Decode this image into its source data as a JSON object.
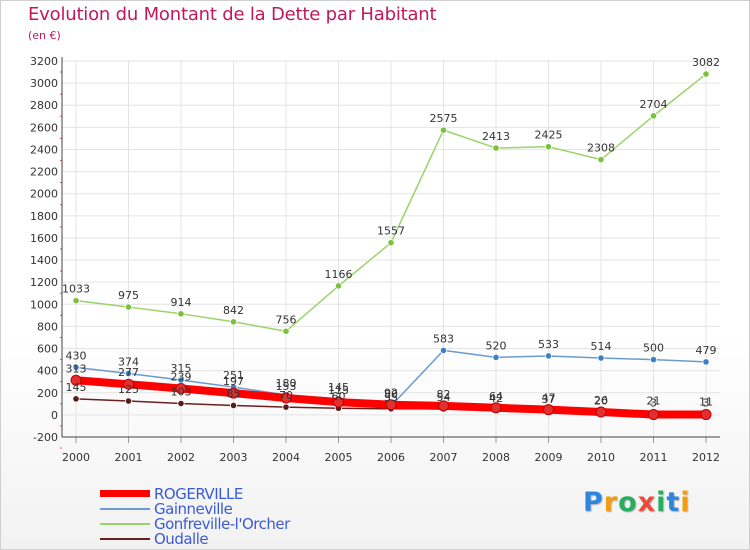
{
  "title": "Evolution du Montant de la Dette par Habitant",
  "subtitle": "(en €)",
  "logo": {
    "letters": [
      {
        "ch": "P",
        "color": "#2e86de"
      },
      {
        "ch": "r",
        "color": "#f39c12"
      },
      {
        "ch": "o",
        "color": "#27ae60"
      },
      {
        "ch": "x",
        "color": "#e74c3c"
      },
      {
        "ch": "i",
        "color": "#27ae60"
      },
      {
        "ch": "t",
        "color": "#2e86de"
      },
      {
        "ch": "i",
        "color": "#f39c12"
      }
    ]
  },
  "chart_data": {
    "type": "line",
    "x": [
      "2000",
      "2001",
      "2002",
      "2003",
      "2004",
      "2005",
      "2006",
      "2007",
      "2008",
      "2009",
      "2010",
      "2011",
      "2012"
    ],
    "ylim": [
      -200,
      3200
    ],
    "yticks": [
      -200,
      0,
      200,
      400,
      600,
      800,
      1000,
      1200,
      1400,
      1600,
      1800,
      2000,
      2200,
      2400,
      2600,
      2800,
      3000,
      3200
    ],
    "grid": true,
    "series": [
      {
        "name": "ROGERVILLE",
        "color": "#ff0000",
        "width": 8,
        "marker_fill": "#e03030",
        "values": [
          313,
          277,
          239,
          197,
          153,
          115,
          92,
          82,
          64,
          47,
          26,
          3,
          3
        ],
        "labels": [
          "313",
          "277",
          "239",
          "197",
          "153",
          "115",
          "92",
          "82",
          "64",
          "47",
          "26",
          "3",
          "3"
        ]
      },
      {
        "name": "Gainneville",
        "color": "#6a9bd0",
        "width": 1.5,
        "marker_fill": "#3b82c4",
        "values": [
          430,
          374,
          315,
          251,
          180,
          145,
          80,
          583,
          520,
          533,
          514,
          500,
          479
        ],
        "labels": [
          "430",
          "374",
          "315",
          "251",
          "180",
          "145",
          "80",
          "583",
          "520",
          "533",
          "514",
          "500",
          "479"
        ]
      },
      {
        "name": "Gonfreville-l'Orcher",
        "color": "#9ad36a",
        "width": 1.5,
        "marker_fill": "#7cc13c",
        "values": [
          1033,
          975,
          914,
          842,
          756,
          1166,
          1557,
          2575,
          2413,
          2425,
          2308,
          2704,
          3082
        ],
        "labels": [
          "1033",
          "975",
          "914",
          "842",
          "756",
          "1166",
          "1557",
          "2575",
          "2413",
          "2425",
          "2308",
          "2704",
          "3082"
        ]
      },
      {
        "name": "Oudalle",
        "color": "#6b1f1f",
        "width": 1.5,
        "marker_fill": "#5a1a1a",
        "values": [
          145,
          125,
          103,
          85,
          70,
          60,
          55,
          54,
          42,
          37,
          20,
          21,
          11
        ],
        "labels": [
          "145",
          "125",
          "103",
          "85",
          "70",
          "60",
          "55",
          "54",
          "42",
          "37",
          "20",
          "21",
          "11"
        ]
      }
    ]
  },
  "legend": [
    {
      "label": "ROGERVILLE",
      "color": "#ff0000",
      "thick": true
    },
    {
      "label": "Gainneville",
      "color": "#6a9bd0",
      "thick": false
    },
    {
      "label": "Gonfreville-l'Orcher",
      "color": "#9ad36a",
      "thick": false
    },
    {
      "label": "Oudalle",
      "color": "#6b1f1f",
      "thick": false
    }
  ]
}
